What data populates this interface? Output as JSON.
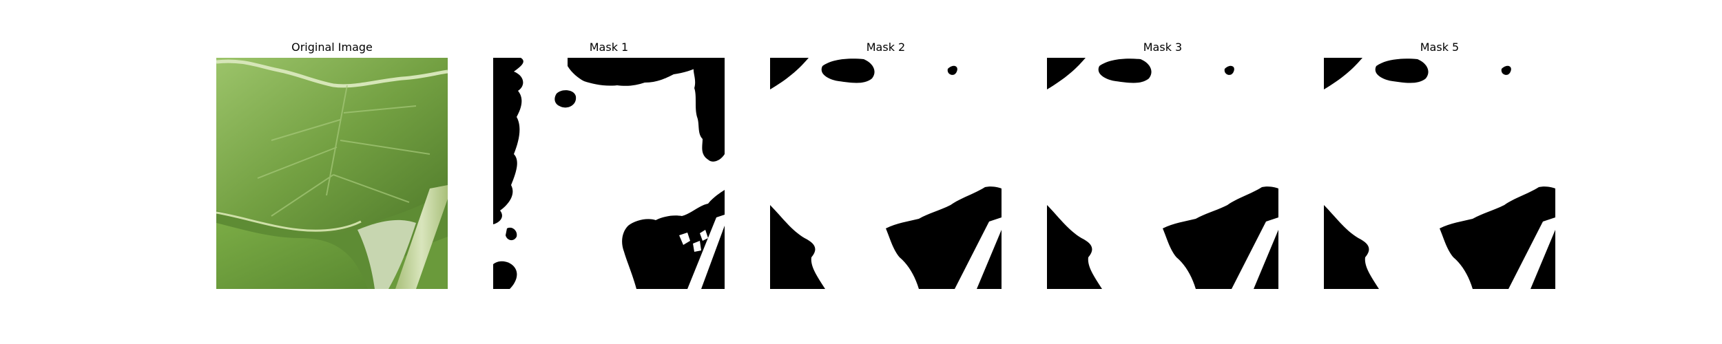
{
  "figure": {
    "panels": [
      {
        "id": "original",
        "title": "Original Image",
        "kind": "photo"
      },
      {
        "id": "mask-1",
        "title": "Mask 1",
        "kind": "mask"
      },
      {
        "id": "mask-2",
        "title": "Mask 2",
        "kind": "mask"
      },
      {
        "id": "mask-3",
        "title": "Mask 3",
        "kind": "mask"
      },
      {
        "id": "mask-5",
        "title": "Mask 5",
        "kind": "mask"
      }
    ]
  },
  "colors": {
    "background": "#ffffff",
    "mask_foreground": "#ffffff",
    "mask_background": "#000000",
    "leaf_light": "#8db85a",
    "leaf_mid": "#6f9c3e",
    "leaf_dark": "#4f7a2a",
    "stem": "#c8d8a8"
  }
}
